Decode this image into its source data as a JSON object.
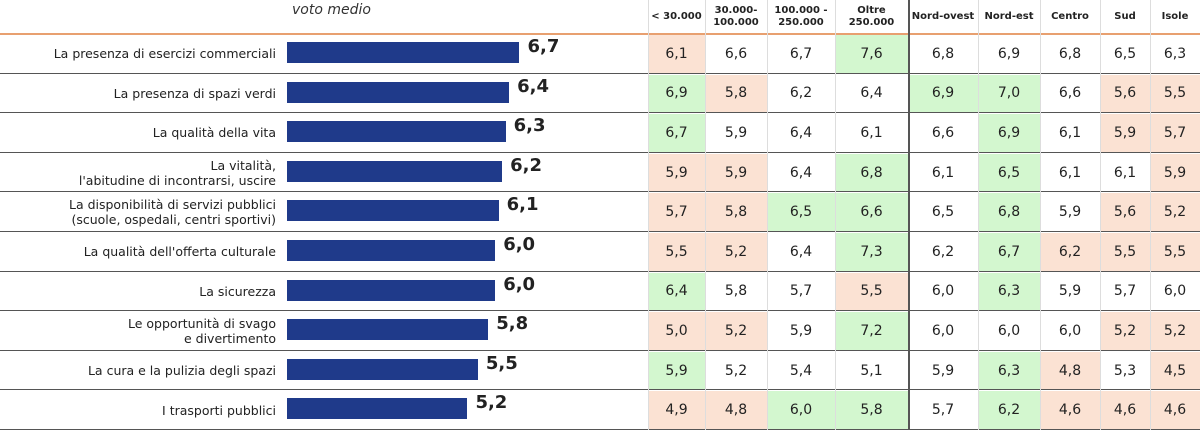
{
  "header": {
    "title": "voto medio",
    "columns": [
      [
        "< 30.000"
      ],
      [
        "30.000-",
        "100.000"
      ],
      [
        "100.000 -",
        "250.000"
      ],
      [
        "Oltre",
        "250.000"
      ],
      [
        "Nord-ovest"
      ],
      [
        "Nord-est"
      ],
      [
        "Centro"
      ],
      [
        "Sud"
      ],
      [
        "Isole"
      ]
    ]
  },
  "rows": [
    {
      "label": [
        "La presenza di esercizi commerciali"
      ],
      "value": 6.7,
      "value_label": "6,7",
      "bar_color": "#1f3a8a",
      "cells": [
        {
          "text": "6,1",
          "color": "#fbe2d3"
        },
        {
          "text": "6,6"
        },
        {
          "text": "6,7"
        },
        {
          "text": "7,6",
          "color": "#d3f7cf"
        },
        {
          "text": "6,8"
        },
        {
          "text": "6,9"
        },
        {
          "text": "6,8"
        },
        {
          "text": "6,5"
        },
        {
          "text": "6,3"
        }
      ]
    },
    {
      "label": [
        "La presenza di spazi verdi"
      ],
      "value": 6.4,
      "value_label": "6,4",
      "bar_color": "#1f3a8a",
      "cells": [
        {
          "text": "6,9",
          "color": "#d3f7cf"
        },
        {
          "text": "5,8",
          "color": "#fbe2d3"
        },
        {
          "text": "6,2"
        },
        {
          "text": "6,4"
        },
        {
          "text": "6,9",
          "color": "#d3f7cf"
        },
        {
          "text": "7,0",
          "color": "#d3f7cf"
        },
        {
          "text": "6,6"
        },
        {
          "text": "5,6",
          "color": "#fbe2d3"
        },
        {
          "text": "5,5",
          "color": "#fbe2d3"
        }
      ]
    },
    {
      "label": [
        "La qualità della vita"
      ],
      "value": 6.3,
      "value_label": "6,3",
      "bar_color": "#1f3a8a",
      "cells": [
        {
          "text": "6,7",
          "color": "#d3f7cf"
        },
        {
          "text": "5,9"
        },
        {
          "text": "6,4"
        },
        {
          "text": "6,1"
        },
        {
          "text": "6,6"
        },
        {
          "text": "6,9",
          "color": "#d3f7cf"
        },
        {
          "text": "6,1"
        },
        {
          "text": "5,9",
          "color": "#fbe2d3"
        },
        {
          "text": "5,7",
          "color": "#fbe2d3"
        }
      ]
    },
    {
      "label": [
        "La vitalità,",
        "l'abitudine di incontrarsi, uscire"
      ],
      "value": 6.2,
      "value_label": "6,2",
      "bar_color": "#1f3a8a",
      "cells": [
        {
          "text": "5,9",
          "color": "#fbe2d3"
        },
        {
          "text": "5,9",
          "color": "#fbe2d3"
        },
        {
          "text": "6,4"
        },
        {
          "text": "6,8",
          "color": "#d3f7cf"
        },
        {
          "text": "6,1"
        },
        {
          "text": "6,5",
          "color": "#d3f7cf"
        },
        {
          "text": "6,1"
        },
        {
          "text": "6,1"
        },
        {
          "text": "5,9",
          "color": "#fbe2d3"
        }
      ]
    },
    {
      "label": [
        "La disponibilità di servizi pubblici",
        "(scuole, ospedali, centri sportivi)"
      ],
      "value": 6.1,
      "value_label": "6,1",
      "bar_color": "#1f3a8a",
      "cells": [
        {
          "text": "5,7",
          "color": "#fbe2d3"
        },
        {
          "text": "5,8",
          "color": "#fbe2d3"
        },
        {
          "text": "6,5",
          "color": "#d3f7cf"
        },
        {
          "text": "6,6",
          "color": "#d3f7cf"
        },
        {
          "text": "6,5"
        },
        {
          "text": "6,8",
          "color": "#d3f7cf"
        },
        {
          "text": "5,9"
        },
        {
          "text": "5,6",
          "color": "#fbe2d3"
        },
        {
          "text": "5,2",
          "color": "#fbe2d3"
        }
      ]
    },
    {
      "label": [
        "La qualità dell'offerta culturale"
      ],
      "value": 6.0,
      "value_label": "6,0",
      "bar_color": "#1f3a8a",
      "cells": [
        {
          "text": "5,5",
          "color": "#fbe2d3"
        },
        {
          "text": "5,2",
          "color": "#fbe2d3"
        },
        {
          "text": "6,4"
        },
        {
          "text": "7,3",
          "color": "#d3f7cf"
        },
        {
          "text": "6,2"
        },
        {
          "text": "6,7",
          "color": "#d3f7cf"
        },
        {
          "text": "6,2",
          "color": "#fbe2d3"
        },
        {
          "text": "5,5",
          "color": "#fbe2d3"
        },
        {
          "text": "5,5",
          "color": "#fbe2d3"
        }
      ]
    },
    {
      "label": [
        "La sicurezza"
      ],
      "value": 6.0,
      "value_label": "6,0",
      "bar_color": "#1f3a8a",
      "cells": [
        {
          "text": "6,4",
          "color": "#d3f7cf"
        },
        {
          "text": "5,8"
        },
        {
          "text": "5,7"
        },
        {
          "text": "5,5",
          "color": "#fbe2d3"
        },
        {
          "text": "6,0"
        },
        {
          "text": "6,3",
          "color": "#d3f7cf"
        },
        {
          "text": "5,9"
        },
        {
          "text": "5,7"
        },
        {
          "text": "6,0"
        }
      ]
    },
    {
      "label": [
        "Le opportunità di svago",
        "e divertimento"
      ],
      "value": 5.8,
      "value_label": "5,8",
      "bar_color": "#1f3a8a",
      "cells": [
        {
          "text": "5,0",
          "color": "#fbe2d3"
        },
        {
          "text": "5,2",
          "color": "#fbe2d3"
        },
        {
          "text": "5,9"
        },
        {
          "text": "7,2",
          "color": "#d3f7cf"
        },
        {
          "text": "6,0"
        },
        {
          "text": "6,0"
        },
        {
          "text": "6,0"
        },
        {
          "text": "5,2",
          "color": "#fbe2d3"
        },
        {
          "text": "5,2",
          "color": "#fbe2d3"
        }
      ]
    },
    {
      "label": [
        "La cura e la pulizia degli spazi"
      ],
      "value": 5.5,
      "value_label": "5,5",
      "bar_color": "#1f3a8a",
      "cells": [
        {
          "text": "5,9",
          "color": "#d3f7cf"
        },
        {
          "text": "5,2"
        },
        {
          "text": "5,4"
        },
        {
          "text": "5,1"
        },
        {
          "text": "5,9"
        },
        {
          "text": "6,3",
          "color": "#d3f7cf"
        },
        {
          "text": "4,8",
          "color": "#fbe2d3"
        },
        {
          "text": "5,3"
        },
        {
          "text": "4,5",
          "color": "#fbe2d3"
        }
      ]
    },
    {
      "label": [
        "I trasporti pubblici"
      ],
      "value": 5.2,
      "value_label": "5,2",
      "bar_color": "#1f3a8a",
      "cells": [
        {
          "text": "4,9",
          "color": "#fbe2d3"
        },
        {
          "text": "4,8",
          "color": "#fbe2d3"
        },
        {
          "text": "6,0",
          "color": "#d3f7cf"
        },
        {
          "text": "5,8",
          "color": "#d3f7cf"
        },
        {
          "text": "5,7"
        },
        {
          "text": "6,2",
          "color": "#d3f7cf"
        },
        {
          "text": "4,6",
          "color": "#fbe2d3"
        },
        {
          "text": "4,6",
          "color": "#fbe2d3"
        },
        {
          "text": "4,6",
          "color": "#fbe2d3"
        }
      ]
    }
  ]
}
